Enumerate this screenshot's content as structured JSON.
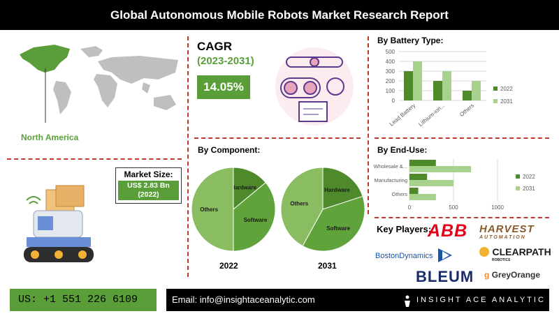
{
  "header": {
    "title": "Global Autonomous Mobile Robots Market Research Report"
  },
  "region": {
    "label": "North America"
  },
  "cagr": {
    "label": "CAGR",
    "period": "(2023-2031)",
    "value": "14.05%"
  },
  "market_size": {
    "label": "Market Size:",
    "value": "US$ 2.83 Bn",
    "year": "(2022)"
  },
  "key_players": {
    "title": "Key Players:",
    "logos": [
      "ABB",
      "HARVEST",
      "AUTOMATION",
      "BostonDynamics",
      "CLEARPATH",
      "ROBOTICS",
      "BLEUM",
      "GreyOrange"
    ]
  },
  "footer": {
    "phone": "US: +1 551 226 6109",
    "email": "Email: info@insightaceanalytic.com",
    "brand": "INSIGHT ACE ANALYTIC"
  },
  "colors": {
    "dark_green": "#4e8a2c",
    "light_green": "#8fc86b",
    "pie_light": "#8abd62",
    "red": "#c0392b",
    "accent": "#5a9e3a"
  },
  "chart_data": [
    {
      "id": "battery",
      "type": "bar",
      "title": "By Battery Type:",
      "categories": [
        "Lead Battery",
        "Lithium-ion...",
        "Others"
      ],
      "series": [
        {
          "name": "2022",
          "values": [
            300,
            200,
            100
          ],
          "color": "#4e8a2c"
        },
        {
          "name": "2031",
          "values": [
            400,
            300,
            200
          ],
          "color": "#a9d18e"
        }
      ],
      "ylim": [
        0,
        500
      ],
      "yticks": [
        0,
        100,
        200,
        300,
        400,
        500
      ],
      "legend": "right"
    },
    {
      "id": "enduse",
      "type": "bar",
      "orientation": "horizontal",
      "title": "By End-Use:",
      "categories": [
        "Wholesale &...",
        "Manufacturing",
        "Others"
      ],
      "series": [
        {
          "name": "2022",
          "values": [
            300,
            200,
            100
          ],
          "color": "#4e8a2c"
        },
        {
          "name": "2031",
          "values": [
            700,
            500,
            300
          ],
          "color": "#a9d18e"
        }
      ],
      "xlim": [
        0,
        1000
      ],
      "xticks": [
        0,
        500,
        1000
      ],
      "legend": "right"
    },
    {
      "id": "component2022",
      "type": "pie",
      "title": "By Component:",
      "caption": "2022",
      "slices": [
        {
          "label": "Hardware",
          "value": 14,
          "color": "#4e8a2c"
        },
        {
          "label": "Software",
          "value": 36,
          "color": "#5fa33a"
        },
        {
          "label": "Others",
          "value": 50,
          "color": "#8abd62"
        }
      ]
    },
    {
      "id": "component2031",
      "type": "pie",
      "caption": "2031",
      "slices": [
        {
          "label": "Hardware",
          "value": 20,
          "color": "#4e8a2c"
        },
        {
          "label": "Software",
          "value": 38,
          "color": "#5fa33a"
        },
        {
          "label": "Others",
          "value": 42,
          "color": "#8abd62"
        }
      ]
    }
  ]
}
